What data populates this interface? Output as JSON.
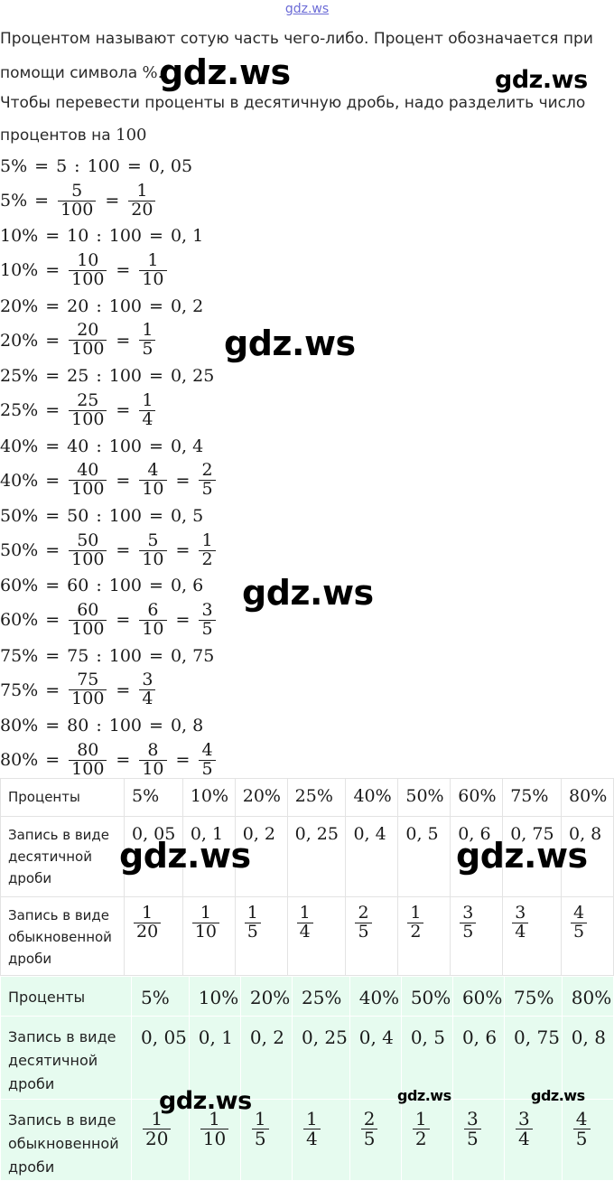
{
  "site_link": "gdz.ws",
  "intro": {
    "line1": "Процентом называют сотую часть чего-либо. Процент обозначается при",
    "line2_text": "помощи символа ",
    "line2_symbol": "%.",
    "line3": "Чтобы перевести проценты в десятичную дробь, надо разделить число",
    "line4_text": "процентов на ",
    "line4_number": "100"
  },
  "watermarks": [
    "gdz.ws",
    "gdz.ws",
    "gdz.ws",
    "gdz.ws",
    "gdz.ws",
    "gdz.ws",
    "gdz.ws",
    "gdz.ws",
    "gdz.ws"
  ],
  "formulas": [
    {
      "p": "5%",
      "div": "5",
      "hundred": "100",
      "dec": "0, 05",
      "fracs": [
        [
          "5",
          "100"
        ],
        [
          "1",
          "20"
        ]
      ]
    },
    {
      "p": "10%",
      "div": "10",
      "hundred": "100",
      "dec": "0, 1",
      "fracs": [
        [
          "10",
          "100"
        ],
        [
          "1",
          "10"
        ]
      ]
    },
    {
      "p": "20%",
      "div": "20",
      "hundred": "100",
      "dec": "0, 2",
      "fracs": [
        [
          "20",
          "100"
        ],
        [
          "1",
          "5"
        ]
      ]
    },
    {
      "p": "25%",
      "div": "25",
      "hundred": "100",
      "dec": "0, 25",
      "fracs": [
        [
          "25",
          "100"
        ],
        [
          "1",
          "4"
        ]
      ]
    },
    {
      "p": "40%",
      "div": "40",
      "hundred": "100",
      "dec": "0, 4",
      "fracs": [
        [
          "40",
          "100"
        ],
        [
          "4",
          "10"
        ],
        [
          "2",
          "5"
        ]
      ]
    },
    {
      "p": "50%",
      "div": "50",
      "hundred": "100",
      "dec": "0, 5",
      "fracs": [
        [
          "50",
          "100"
        ],
        [
          "5",
          "10"
        ],
        [
          "1",
          "2"
        ]
      ]
    },
    {
      "p": "60%",
      "div": "60",
      "hundred": "100",
      "dec": "0, 6",
      "fracs": [
        [
          "60",
          "100"
        ],
        [
          "6",
          "10"
        ],
        [
          "3",
          "5"
        ]
      ]
    },
    {
      "p": "75%",
      "div": "75",
      "hundred": "100",
      "dec": "0, 75",
      "fracs": [
        [
          "75",
          "100"
        ],
        [
          "3",
          "4"
        ]
      ]
    },
    {
      "p": "80%",
      "div": "80",
      "hundred": "100",
      "dec": "0, 8",
      "fracs": [
        [
          "80",
          "100"
        ],
        [
          "8",
          "10"
        ],
        [
          "4",
          "5"
        ]
      ]
    }
  ],
  "table": {
    "row_labels": {
      "percent": "Проценты",
      "decimal": "Запись в виде десятичной дроби",
      "fraction": "Запись в виде обыкновенной дроби"
    },
    "percents": [
      "5%",
      "10%",
      "20%",
      "25%",
      "40%",
      "50%",
      "60%",
      "75%",
      "80%"
    ],
    "decimals": [
      "0, 05",
      "0, 1",
      "0, 2",
      "0, 25",
      "0, 4",
      "0, 5",
      "0, 6",
      "0, 75",
      "0, 8"
    ],
    "fractions": [
      [
        "1",
        "20"
      ],
      [
        "1",
        "10"
      ],
      [
        "1",
        "5"
      ],
      [
        "1",
        "4"
      ],
      [
        "2",
        "5"
      ],
      [
        "1",
        "2"
      ],
      [
        "3",
        "5"
      ],
      [
        "3",
        "4"
      ],
      [
        "4",
        "5"
      ]
    ]
  },
  "colors": {
    "table2_background": "#e6fbef",
    "link": "#6b6bd6",
    "table_border": "#e3e3e3"
  }
}
